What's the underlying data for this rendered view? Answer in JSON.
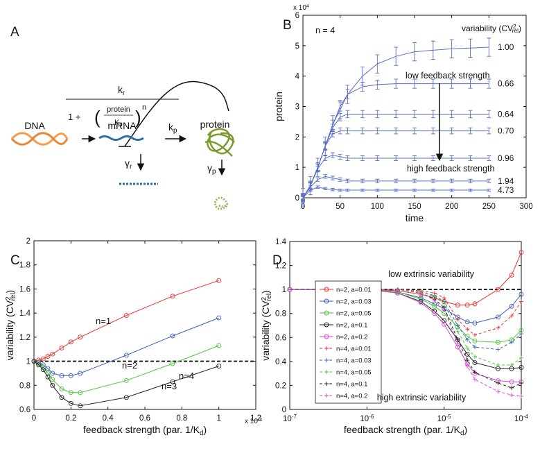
{
  "diagram": {
    "label": "A",
    "rate_numerator": {
      "text": "k",
      "sub": "r"
    },
    "denominator": {
      "lead": "1 +",
      "open": "(",
      "num": "protein",
      "den": {
        "text": "K",
        "sub": "d"
      },
      "close": ")",
      "power": "n"
    },
    "dna": "DNA",
    "mrna": "mRNA",
    "protein": "protein",
    "kp": {
      "text": "k",
      "sub": "p"
    },
    "gr": {
      "text": "γ",
      "sub": "r"
    },
    "gp": {
      "text": "γ",
      "sub": "p"
    }
  },
  "chart_data": [
    {
      "type": "line",
      "panel": "B",
      "xlabel": "time",
      "ylabel": "protein",
      "multiplier": {
        "text": "x 10",
        "sup": "4"
      },
      "annotations": [
        "n = 4",
        "low feedback strength",
        "high feedback strength"
      ],
      "legend_title": {
        "text": "variability (CV",
        "sup": "2",
        "sub": "rel",
        "end": ")"
      },
      "legend": "line ends",
      "error_bars": true,
      "x": [
        0,
        10,
        20,
        30,
        40,
        50,
        60,
        80,
        100,
        125,
        150,
        175,
        200,
        225,
        250
      ],
      "xlim": [
        0,
        300
      ],
      "xticks": [
        0,
        50,
        100,
        150,
        200,
        250,
        300
      ],
      "ylim": [
        0,
        6
      ],
      "yticks": [
        0,
        1,
        2,
        3,
        4,
        5,
        6
      ],
      "series": [
        {
          "name": "1.00",
          "color": "#5a6fc2",
          "error": 0.3,
          "values": [
            0,
            0.4,
            1.0,
            1.7,
            2.4,
            2.9,
            3.4,
            4.0,
            4.4,
            4.65,
            4.8,
            4.85,
            4.9,
            4.92,
            4.95
          ]
        },
        {
          "name": "0.66",
          "color": "#5a6fc2",
          "error": 0.15,
          "values": [
            0,
            0.4,
            1.0,
            1.7,
            2.4,
            3.0,
            3.4,
            3.65,
            3.72,
            3.75,
            3.75,
            3.75,
            3.75,
            3.75,
            3.75
          ]
        },
        {
          "name": "0.64",
          "color": "#5a6fc2",
          "error": 0.12,
          "values": [
            0,
            0.4,
            1.0,
            1.7,
            2.3,
            2.65,
            2.75,
            2.75,
            2.75,
            2.75,
            2.75,
            2.75,
            2.75,
            2.75,
            2.75
          ]
        },
        {
          "name": "0.70",
          "color": "#5a6fc2",
          "error": 0.1,
          "values": [
            0,
            0.4,
            1.0,
            1.7,
            2.1,
            2.2,
            2.2,
            2.2,
            2.2,
            2.2,
            2.2,
            2.2,
            2.2,
            2.2,
            2.2
          ]
        },
        {
          "name": "0.96",
          "color": "#5a6fc2",
          "error": 0.08,
          "values": [
            0,
            0.4,
            0.95,
            1.3,
            1.4,
            1.35,
            1.3,
            1.3,
            1.3,
            1.3,
            1.3,
            1.3,
            1.3,
            1.3,
            1.3
          ]
        },
        {
          "name": "1.94",
          "color": "#5a6fc2",
          "error": 0.06,
          "values": [
            0,
            0.35,
            0.6,
            0.7,
            0.65,
            0.6,
            0.55,
            0.55,
            0.55,
            0.55,
            0.55,
            0.55,
            0.55,
            0.55,
            0.55
          ]
        },
        {
          "name": "4.73",
          "color": "#5a6fc2",
          "error": 0.04,
          "values": [
            0,
            0.25,
            0.35,
            0.3,
            0.27,
            0.25,
            0.25,
            0.25,
            0.25,
            0.25,
            0.25,
            0.25,
            0.25,
            0.25,
            0.25
          ]
        }
      ]
    },
    {
      "type": "line",
      "panel": "C",
      "xlabel": {
        "text": "feedback strength (par. 1/K",
        "sub": "d",
        "end": ")"
      },
      "ylabel": {
        "text": "variability (CV",
        "sup": "2",
        "sub": "rel",
        "end": ")"
      },
      "multiplier": {
        "text": "x 10",
        "sup": "-4"
      },
      "legend": "inline",
      "hline": 1,
      "x": [
        0,
        0.025,
        0.05,
        0.075,
        0.1,
        0.15,
        0.2,
        0.25,
        0.5,
        0.75,
        1
      ],
      "xlim": [
        0,
        1.2
      ],
      "xticks": [
        0,
        0.2,
        0.4,
        0.6,
        0.8,
        1,
        1.2
      ],
      "ylim": [
        0.6,
        2
      ],
      "yticks": [
        0.6,
        0.8,
        1,
        1.2,
        1.4,
        1.6,
        1.8,
        2
      ],
      "series": [
        {
          "name": "n=1",
          "color": "#e8302c",
          "marker": "circle",
          "linestyle": "solid",
          "values": [
            1.0,
            1.01,
            1.02,
            1.04,
            1.06,
            1.11,
            1.16,
            1.2,
            1.38,
            1.54,
            1.67
          ]
        },
        {
          "name": "n=2",
          "color": "#3b5fc0",
          "marker": "circle",
          "linestyle": "solid",
          "values": [
            1.0,
            0.99,
            0.97,
            0.94,
            0.9,
            0.88,
            0.88,
            0.9,
            1.05,
            1.21,
            1.36
          ]
        },
        {
          "name": "n=3",
          "color": "#4cc63a",
          "marker": "circle",
          "linestyle": "solid",
          "values": [
            1.0,
            0.98,
            0.95,
            0.9,
            0.85,
            0.77,
            0.74,
            0.74,
            0.84,
            0.98,
            1.13
          ]
        },
        {
          "name": "n=4",
          "color": "#222222",
          "marker": "circle",
          "linestyle": "solid",
          "values": [
            1.0,
            0.97,
            0.93,
            0.87,
            0.8,
            0.7,
            0.65,
            0.63,
            0.7,
            0.83,
            0.96
          ]
        }
      ]
    },
    {
      "type": "line",
      "panel": "D",
      "xlabel": {
        "text": "feedback strength (par. 1/K",
        "sub": "d",
        "end": ")"
      },
      "ylabel": {
        "text": "variability (CV",
        "sup": "2",
        "sub": "rel",
        "end": ")"
      },
      "annotations": [
        "low extrinsic variability",
        "high extrinsic variability"
      ],
      "legend": "center left",
      "hline": 1,
      "xlog": true,
      "x": [
        1e-07,
        1e-06,
        2.5e-06,
        5e-06,
        7.5e-06,
        1e-05,
        1.5e-05,
        2e-05,
        2.5e-05,
        5e-05,
        7.5e-05,
        0.0001
      ],
      "xlim": [
        1e-07,
        0.0001
      ],
      "xticks": [
        {
          "value": 1e-07,
          "label": "10",
          "sup": "-7"
        },
        {
          "value": 1e-06,
          "label": "10",
          "sup": "-6"
        },
        {
          "value": 1e-05,
          "label": "10",
          "sup": "-5"
        },
        {
          "value": 0.0001,
          "label": "10",
          "sup": "-4"
        }
      ],
      "ylim": [
        0,
        1.4
      ],
      "yticks": [
        0,
        0.2,
        0.4,
        0.6,
        0.8,
        1,
        1.2,
        1.4
      ],
      "series": [
        {
          "name": "n=2, a=0.01",
          "color": "#e8302c",
          "marker": "circle",
          "linestyle": "solid",
          "values": [
            1,
            1,
            0.99,
            0.96,
            0.93,
            0.9,
            0.87,
            0.87,
            0.88,
            1.0,
            1.12,
            1.31
          ]
        },
        {
          "name": "n=2, a=0.03",
          "color": "#3b5fc0",
          "marker": "circle",
          "linestyle": "solid",
          "values": [
            1,
            1,
            0.98,
            0.93,
            0.88,
            0.84,
            0.77,
            0.73,
            0.72,
            0.77,
            0.86,
            0.96
          ]
        },
        {
          "name": "n=2, a=0.05",
          "color": "#4cc63a",
          "marker": "circle",
          "linestyle": "solid",
          "values": [
            1,
            1,
            0.98,
            0.92,
            0.86,
            0.8,
            0.69,
            0.61,
            0.57,
            0.56,
            0.58,
            0.66
          ]
        },
        {
          "name": "n=2, a=0.1",
          "color": "#222222",
          "marker": "circle",
          "linestyle": "solid",
          "values": [
            1,
            1,
            0.97,
            0.9,
            0.82,
            0.74,
            0.58,
            0.46,
            0.39,
            0.34,
            0.34,
            0.35
          ]
        },
        {
          "name": "n=2, a=0.2",
          "color": "#d04fd0",
          "marker": "circle",
          "linestyle": "solid",
          "values": [
            1,
            1,
            0.97,
            0.89,
            0.8,
            0.71,
            0.52,
            0.38,
            0.3,
            0.24,
            0.23,
            0.23
          ]
        },
        {
          "name": "n=4, a=0.01",
          "color": "#e8302c",
          "marker": "plus",
          "linestyle": "dashed",
          "values": [
            1,
            1,
            1,
            0.99,
            0.97,
            0.93,
            0.75,
            0.67,
            0.62,
            0.68,
            0.78,
            0.9
          ]
        },
        {
          "name": "n=4, a=0.03",
          "color": "#3b5fc0",
          "marker": "plus",
          "linestyle": "dashed",
          "values": [
            1,
            1,
            1,
            0.98,
            0.95,
            0.9,
            0.7,
            0.58,
            0.52,
            0.5,
            0.56,
            0.63
          ]
        },
        {
          "name": "n=4, a=0.05",
          "color": "#4cc63a",
          "marker": "plus",
          "linestyle": "dashed",
          "values": [
            1,
            1,
            1,
            0.98,
            0.94,
            0.88,
            0.65,
            0.51,
            0.44,
            0.37,
            0.37,
            0.43
          ]
        },
        {
          "name": "n=4, a=0.1",
          "color": "#222222",
          "marker": "plus",
          "linestyle": "dashed",
          "values": [
            1,
            1,
            1,
            0.97,
            0.92,
            0.85,
            0.58,
            0.41,
            0.31,
            0.22,
            0.18,
            0.22
          ]
        },
        {
          "name": "n=4, a=0.2",
          "color": "#d04fd0",
          "marker": "plus",
          "linestyle": "dashed",
          "values": [
            1,
            1,
            1,
            0.97,
            0.91,
            0.83,
            0.55,
            0.36,
            0.25,
            0.15,
            0.12,
            0.11
          ]
        }
      ]
    }
  ]
}
